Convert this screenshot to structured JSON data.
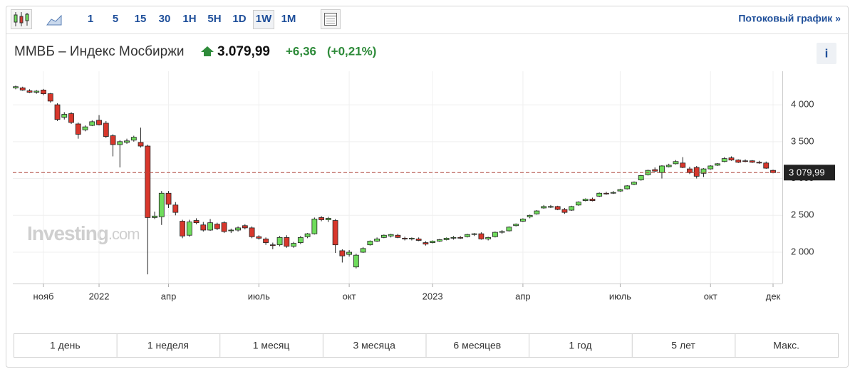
{
  "toolbar": {
    "intervals": [
      "1",
      "5",
      "15",
      "30",
      "1H",
      "5H",
      "1D",
      "1W",
      "1M"
    ],
    "selected": "1W",
    "streaming_link": "Потоковый график »"
  },
  "header": {
    "name": "ММВБ – Индекс Мосбиржи",
    "price": "3.079,99",
    "change": "+6,36",
    "change_pct": "(+0,21%)",
    "info_button": "i"
  },
  "watermark": {
    "brand": "Investing",
    "suffix": ".com"
  },
  "periods": [
    "1 день",
    "1 неделя",
    "1 месяц",
    "3 месяца",
    "6 месяцев",
    "1 год",
    "5 лет",
    "Макс."
  ],
  "chart_data": {
    "type": "candlestick",
    "up_color": "#6fdc5c",
    "down_color": "#d8372c",
    "grid": true,
    "ylim": [
      1575,
      4455
    ],
    "yticks": [
      {
        "value": 2000,
        "label": "2 000"
      },
      {
        "value": 2500,
        "label": "2 500"
      },
      {
        "value": 3000,
        "label": "3 000"
      },
      {
        "value": 3500,
        "label": "3 500"
      },
      {
        "value": 4000,
        "label": "4 000"
      }
    ],
    "last_price": {
      "value": 3079.99,
      "label": "3 079,99"
    },
    "categories": [
      null,
      null,
      null,
      null,
      "нояб",
      null,
      null,
      null,
      null,
      null,
      null,
      null,
      "2022",
      null,
      null,
      null,
      null,
      null,
      null,
      null,
      null,
      null,
      "апр",
      null,
      null,
      null,
      null,
      null,
      null,
      null,
      null,
      null,
      null,
      null,
      null,
      "июль",
      null,
      null,
      null,
      null,
      null,
      null,
      null,
      null,
      null,
      null,
      null,
      null,
      "окт",
      null,
      null,
      null,
      null,
      null,
      null,
      null,
      null,
      null,
      null,
      null,
      "2023",
      null,
      null,
      null,
      null,
      null,
      null,
      null,
      null,
      null,
      null,
      null,
      null,
      "апр",
      null,
      null,
      null,
      null,
      null,
      null,
      null,
      null,
      null,
      null,
      null,
      null,
      null,
      "июль",
      null,
      null,
      null,
      null,
      null,
      null,
      null,
      null,
      null,
      null,
      null,
      null,
      "окт",
      null,
      null,
      null,
      null,
      null,
      null,
      null,
      null,
      "дек"
    ],
    "open": [
      4230,
      4230,
      4190,
      4170,
      4200,
      4150,
      4000,
      3830,
      3880,
      3740,
      3660,
      3720,
      3790,
      3750,
      3580,
      3460,
      3490,
      3520,
      3490,
      3440,
      2470,
      2480,
      2800,
      2640,
      2420,
      2230,
      2430,
      2370,
      2300,
      2380,
      2400,
      2290,
      2300,
      2360,
      2330,
      2210,
      2180,
      2100,
      2100,
      2200,
      2080,
      2130,
      2210,
      2250,
      2470,
      2440,
      2430,
      2020,
      1970,
      1800,
      2000,
      2100,
      2150,
      2200,
      2220,
      2230,
      2190,
      2180,
      2180,
      2130,
      2130,
      2150,
      2170,
      2190,
      2200,
      2210,
      2240,
      2250,
      2180,
      2210,
      2270,
      2290,
      2360,
      2420,
      2480,
      2520,
      2600,
      2610,
      2620,
      2580,
      2570,
      2640,
      2700,
      2720,
      2760,
      2800,
      2800,
      2830,
      2860,
      2920,
      2980,
      3050,
      3120,
      3080,
      3160,
      3200,
      3210,
      3130,
      3150,
      3070,
      3130,
      3180,
      3230,
      3280,
      3250,
      3240,
      3240,
      3220,
      3210,
      3110
    ],
    "high": [
      4260,
      4245,
      4210,
      4200,
      4215,
      4160,
      4020,
      3900,
      3900,
      3760,
      3720,
      3790,
      3860,
      3780,
      3600,
      3520,
      3540,
      3580,
      3690,
      3460,
      2550,
      2830,
      2830,
      2680,
      2440,
      2440,
      2460,
      2410,
      2450,
      2400,
      2420,
      2320,
      2350,
      2380,
      2350,
      2230,
      2200,
      2130,
      2220,
      2230,
      2140,
      2220,
      2260,
      2470,
      2490,
      2480,
      2450,
      2040,
      2030,
      1980,
      2070,
      2160,
      2200,
      2240,
      2250,
      2250,
      2210,
      2200,
      2200,
      2150,
      2160,
      2180,
      2200,
      2220,
      2220,
      2250,
      2260,
      2270,
      2210,
      2280,
      2300,
      2350,
      2390,
      2460,
      2510,
      2570,
      2640,
      2640,
      2630,
      2600,
      2630,
      2690,
      2730,
      2740,
      2810,
      2820,
      2830,
      2860,
      2910,
      2960,
      3050,
      3120,
      3150,
      3180,
      3200,
      3250,
      3290,
      3160,
      3170,
      3140,
      3180,
      3210,
      3290,
      3300,
      3260,
      3260,
      3250,
      3240,
      3230,
      3120
    ],
    "low": [
      4210,
      4190,
      4160,
      4150,
      4130,
      4030,
      3780,
      3800,
      3740,
      3540,
      3640,
      3710,
      3720,
      3550,
      3300,
      3150,
      3470,
      3500,
      3420,
      1700,
      2450,
      2370,
      2600,
      2500,
      2190,
      2210,
      2380,
      2280,
      2290,
      2300,
      2260,
      2260,
      2280,
      2310,
      2190,
      2170,
      2100,
      2040,
      2080,
      2060,
      2060,
      2110,
      2190,
      2240,
      2420,
      2410,
      1990,
      1860,
      1940,
      1780,
      1990,
      2090,
      2140,
      2190,
      2200,
      2190,
      2160,
      2160,
      2150,
      2090,
      2120,
      2140,
      2160,
      2170,
      2180,
      2200,
      2220,
      2170,
      2160,
      2200,
      2250,
      2280,
      2350,
      2410,
      2460,
      2510,
      2590,
      2600,
      2570,
      2520,
      2560,
      2630,
      2690,
      2690,
      2750,
      2780,
      2790,
      2820,
      2850,
      2910,
      2970,
      3040,
      3090,
      3000,
      3150,
      3190,
      3140,
      3060,
      3000,
      3020,
      3120,
      3170,
      3220,
      3240,
      3210,
      3220,
      3210,
      3200,
      3130,
      3070
    ],
    "close": [
      4245,
      4200,
      4170,
      4185,
      4150,
      4050,
      3800,
      3870,
      3760,
      3600,
      3700,
      3770,
      3730,
      3570,
      3460,
      3500,
      3510,
      3560,
      3440,
      2470,
      2490,
      2800,
      2650,
      2540,
      2220,
      2410,
      2400,
      2300,
      2400,
      2320,
      2280,
      2300,
      2330,
      2330,
      2210,
      2190,
      2130,
      2090,
      2200,
      2080,
      2120,
      2200,
      2250,
      2450,
      2440,
      2460,
      2100,
      1950,
      2000,
      1960,
      2050,
      2150,
      2180,
      2230,
      2240,
      2200,
      2180,
      2190,
      2160,
      2110,
      2150,
      2170,
      2190,
      2200,
      2190,
      2240,
      2250,
      2180,
      2200,
      2270,
      2280,
      2340,
      2380,
      2450,
      2500,
      2560,
      2620,
      2620,
      2580,
      2540,
      2620,
      2680,
      2720,
      2700,
      2800,
      2790,
      2810,
      2850,
      2900,
      2950,
      3040,
      3110,
      3100,
      3170,
      3180,
      3230,
      3150,
      3080,
      3030,
      3130,
      3170,
      3200,
      3270,
      3250,
      3220,
      3230,
      3220,
      3210,
      3140,
      3080
    ]
  }
}
